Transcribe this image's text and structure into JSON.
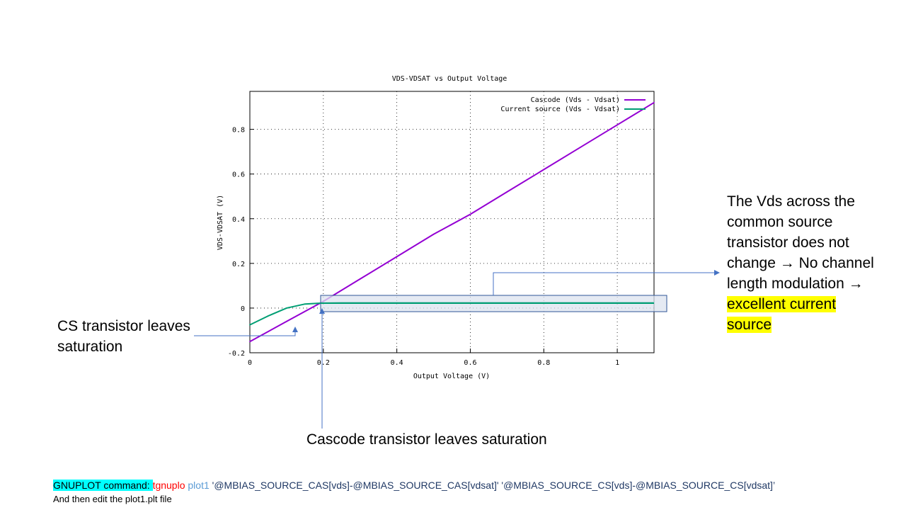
{
  "chart_data": {
    "type": "line",
    "title": "VDS-VDSAT vs Output Voltage",
    "xlabel": "Output Voltage (V)",
    "ylabel": "VDS-VDSAT (V)",
    "xlim": [
      0,
      1.1
    ],
    "ylim": [
      -0.2,
      0.97
    ],
    "x_ticks": [
      "0",
      "0.2",
      "0.4",
      "0.6",
      "0.8",
      "1"
    ],
    "y_ticks": [
      "-0.2",
      "0",
      "0.2",
      "0.4",
      "0.6",
      "0.8"
    ],
    "grid": true,
    "legend_position": "top-right",
    "series": [
      {
        "name": "Cascode (Vds - Vdsat)",
        "color": "#9400d3",
        "x": [
          0,
          0.1,
          0.2,
          0.3,
          0.4,
          0.5,
          0.6,
          0.7,
          0.8,
          0.9,
          1.0,
          1.1
        ],
        "y": [
          -0.15,
          -0.06,
          0.03,
          0.13,
          0.23,
          0.33,
          0.42,
          0.52,
          0.62,
          0.72,
          0.82,
          0.92
        ]
      },
      {
        "name": "Current source (Vds - Vdsat)",
        "color": "#009e73",
        "x": [
          0,
          0.05,
          0.1,
          0.15,
          0.2,
          0.25,
          0.3,
          0.4,
          0.6,
          0.8,
          1.0,
          1.1
        ],
        "y": [
          -0.075,
          -0.035,
          0.0,
          0.018,
          0.023,
          0.025,
          0.025,
          0.025,
          0.025,
          0.025,
          0.025,
          0.025
        ]
      }
    ]
  },
  "annotations": {
    "cs_leaves_saturation": "CS transistor leaves saturation",
    "cascode_leaves_saturation": "Cascode transistor leaves saturation",
    "vds_note_pre": "The Vds across the common source transistor does not change → No channel length modulation →",
    "vds_note_highlight": "excellent current source"
  },
  "footer": {
    "command_label": "GNUPLOT command: ",
    "command_tool": "tgnuplo",
    "command_arg": "plot1",
    "command_expressions": "'@MBIAS_SOURCE_CAS[vds]-@MBIAS_SOURCE_CAS[vdsat]' '@MBIAS_SOURCE_CS[vds]-@MBIAS_SOURCE_CS[vdsat]’",
    "edit_note": "And then edit the plot1.plt file"
  },
  "colors": {
    "callout_arrow": "#4472c4",
    "highlight_box_fill": "#dce3ef",
    "highlight_box_stroke": "#2f5597"
  }
}
